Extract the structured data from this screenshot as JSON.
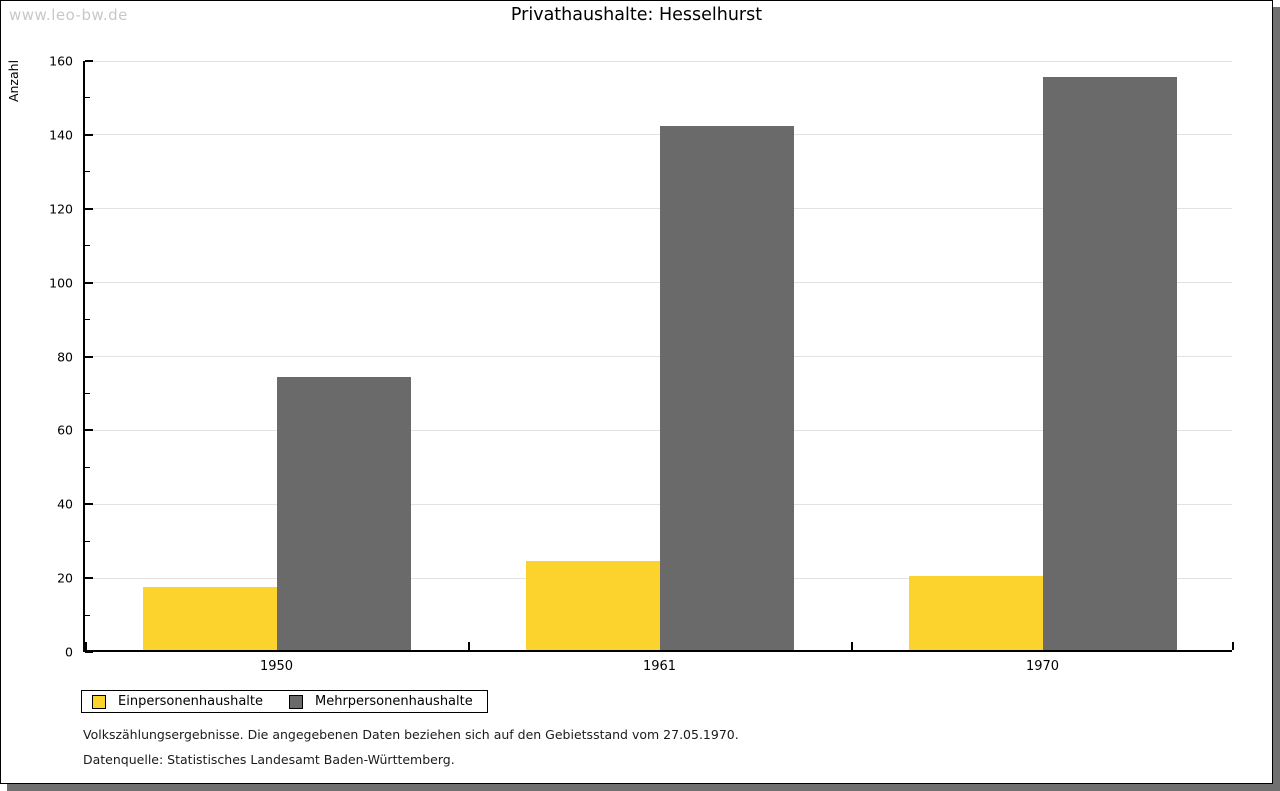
{
  "watermark": "www.leo-bw.de",
  "chart_data": {
    "type": "bar",
    "title": "Privathaushalte: Hesselhurst",
    "xlabel": "",
    "ylabel": "Anzahl",
    "categories": [
      "1950",
      "1961",
      "1970"
    ],
    "series": [
      {
        "name": "Einpersonenhaushalte",
        "color": "#FCD32C",
        "values": [
          17,
          24,
          20
        ]
      },
      {
        "name": "Mehrpersonenhaushalte",
        "color": "#6A6A6A",
        "values": [
          74,
          142,
          155
        ]
      }
    ],
    "ylim": [
      0,
      160
    ],
    "ytick_step": 20,
    "yminor_step": 10,
    "grid": true,
    "legend_position": "bottom-left"
  },
  "footnotes": {
    "line1": "Volkszählungsergebnisse. Die angegebenen Daten beziehen sich auf den Gebietsstand vom 27.05.1970.",
    "line2": "Datenquelle: Statistisches Landesamt Baden-Württemberg."
  },
  "colors": {
    "gridline": "#E2E2E2",
    "watermark": "#C8C8C8",
    "frame_shadow": "#707070"
  }
}
